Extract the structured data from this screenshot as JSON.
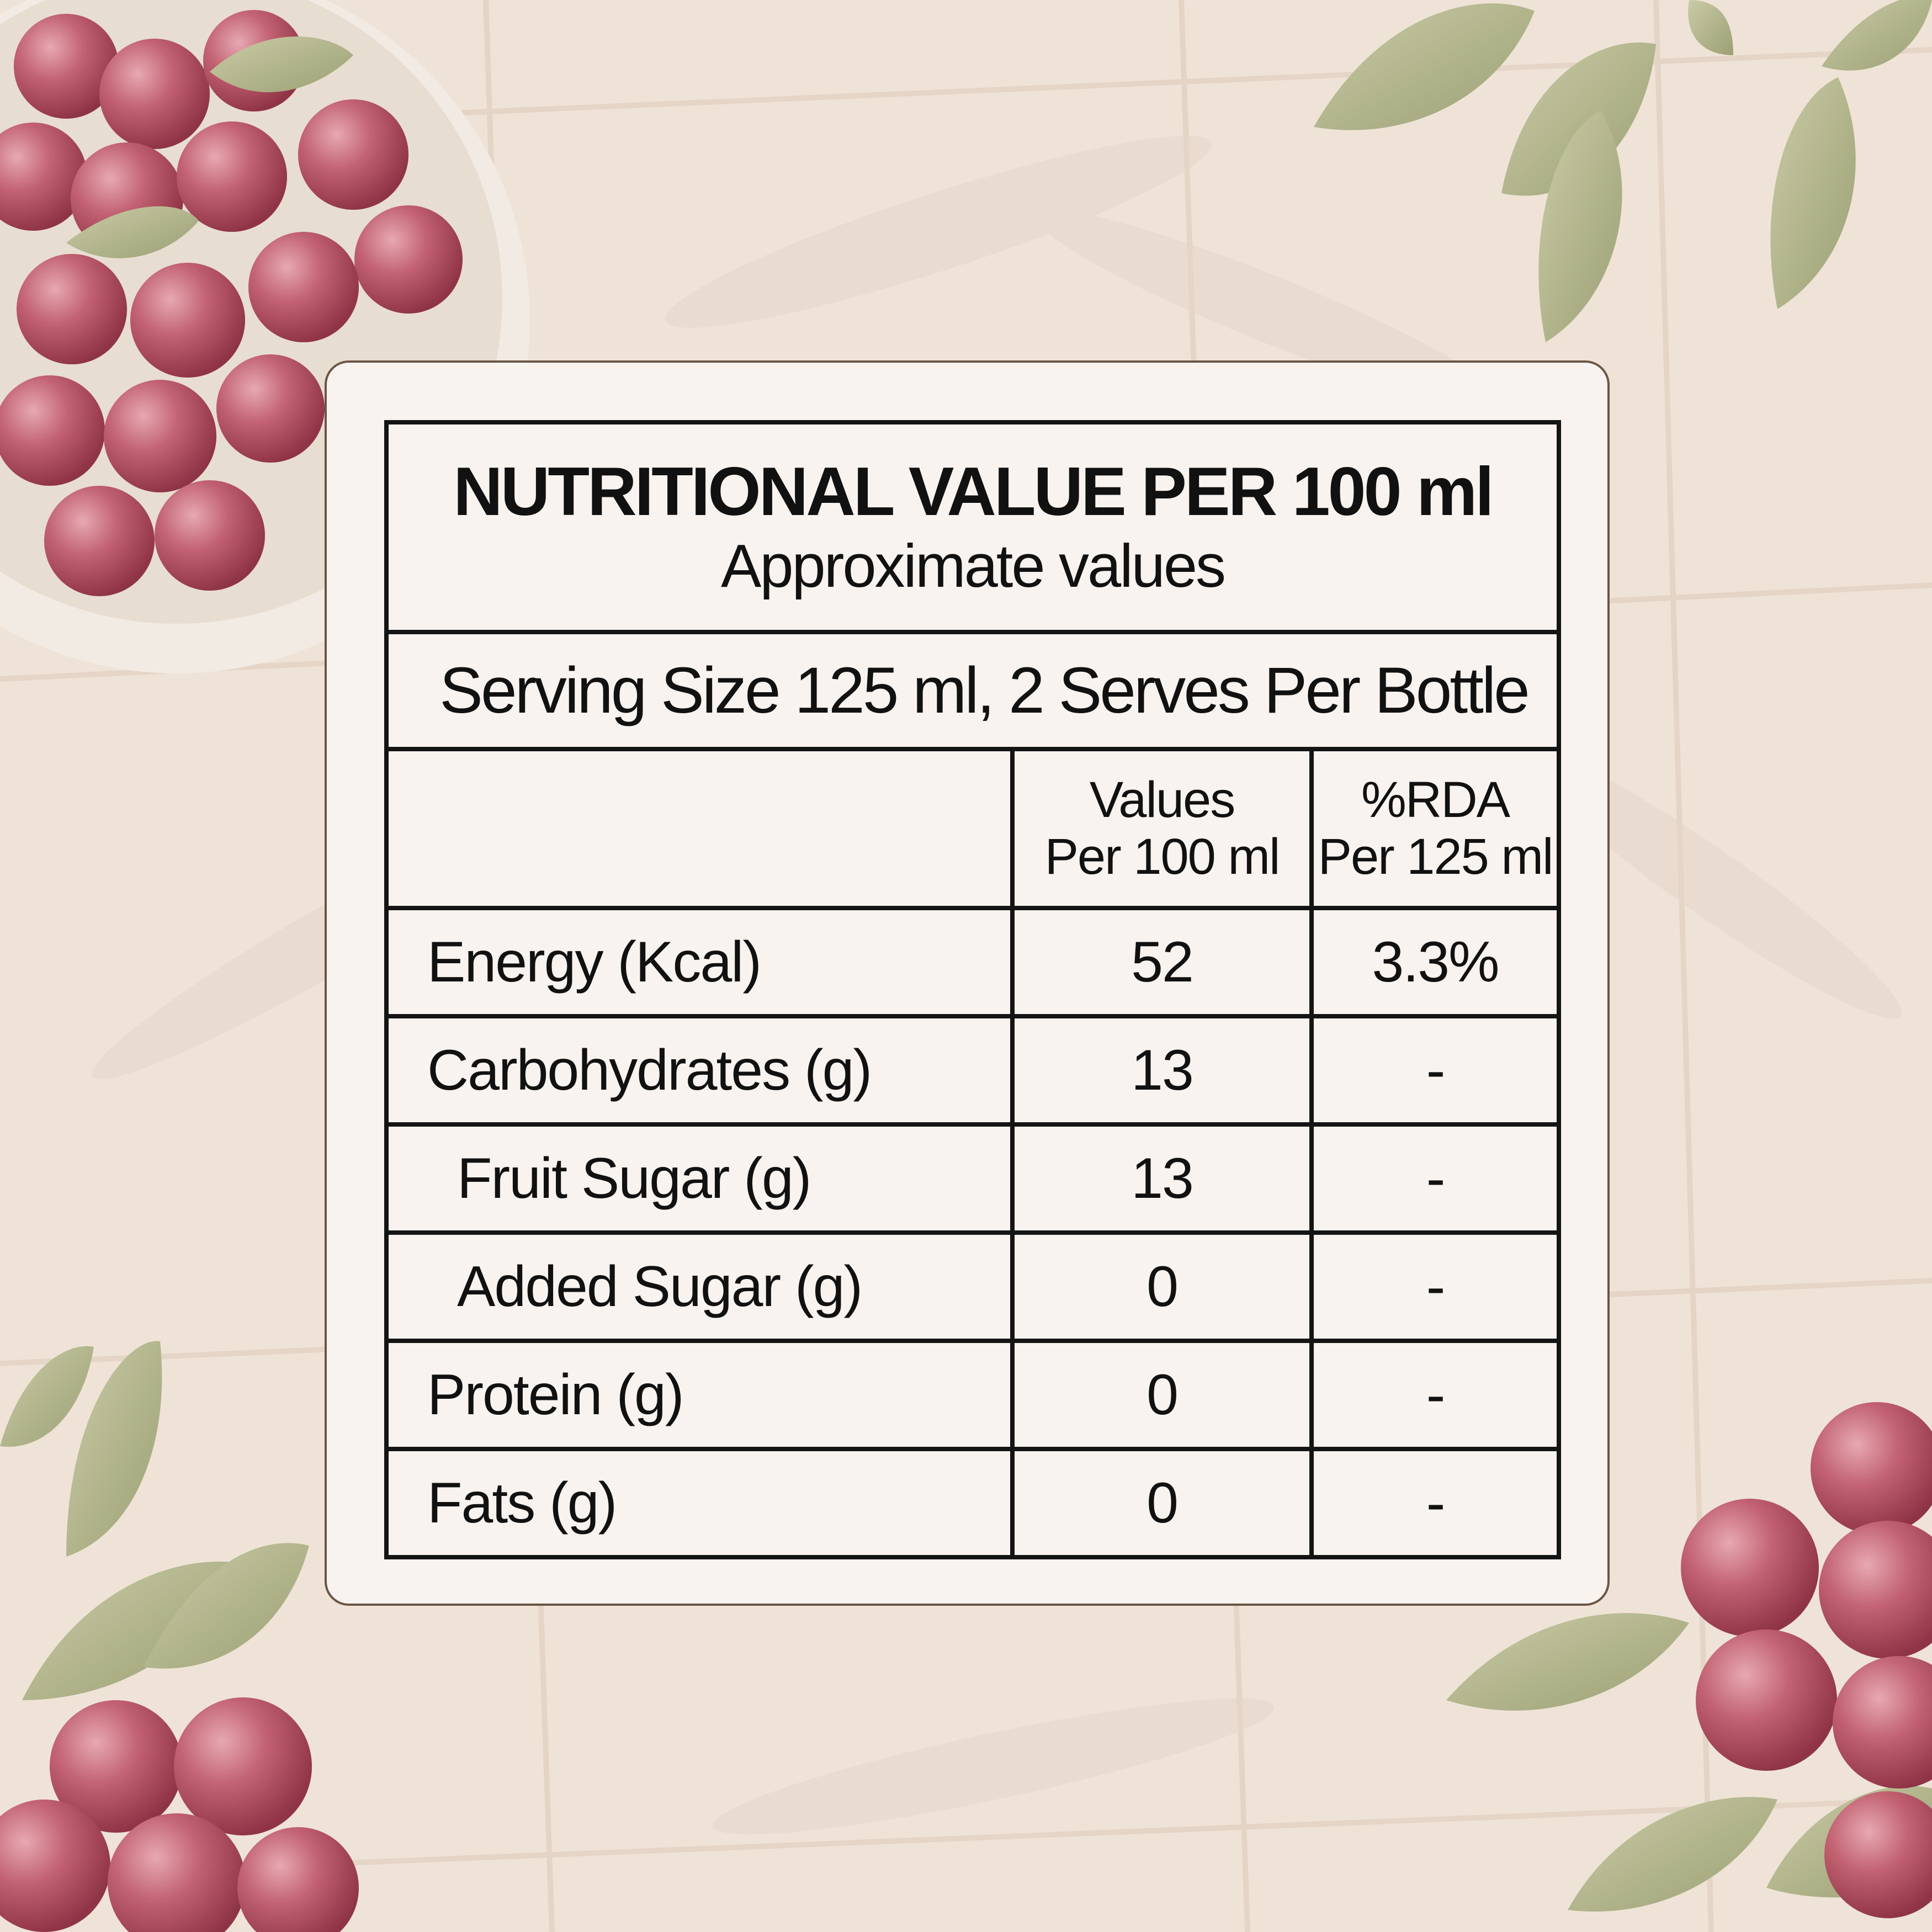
{
  "panel": {
    "title": "NUTRITIONAL VALUE PER 100 ml",
    "subtitle": "Approximate values",
    "serving": "Serving Size 125 ml, 2 Serves Per Bottle",
    "columns": {
      "nutrient": "",
      "values_line1": "Values",
      "values_line2": "Per 100 ml",
      "rda_line1": "%RDA",
      "rda_line2": "Per 125 ml"
    },
    "rows": [
      {
        "name": "Energy (Kcal)",
        "value": "52",
        "rda": "3.3%"
      },
      {
        "name": "Carbohydrates (g)",
        "value": "13",
        "rda": "-"
      },
      {
        "name": "Fruit Sugar (g)",
        "value": "13",
        "rda": "-"
      },
      {
        "name": "Added Sugar (g)",
        "value": "0",
        "rda": "-"
      },
      {
        "name": "Protein (g)",
        "value": "0",
        "rda": "-"
      },
      {
        "name": "Fats (g)",
        "value": "0",
        "rda": "-"
      }
    ]
  },
  "colors": {
    "background": "#efe3d7",
    "card": "#f8f3ee",
    "card_border": "#6b5546",
    "table_border": "#141414",
    "berry": "#b04a5b",
    "leaf": "#a8ad82"
  }
}
